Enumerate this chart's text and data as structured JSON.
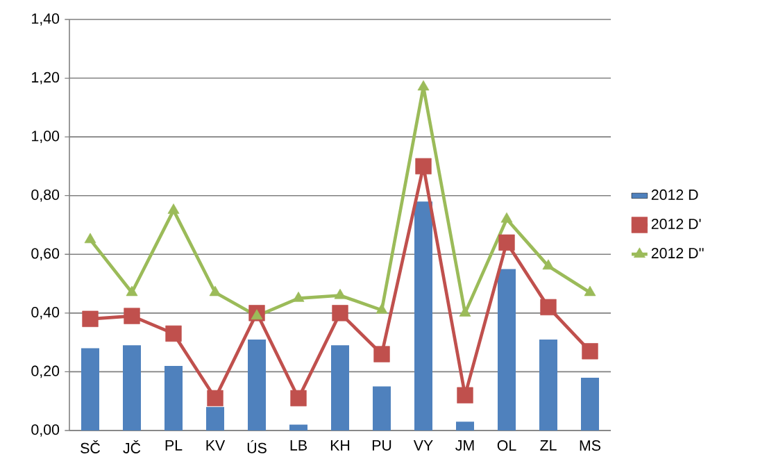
{
  "chart_data": {
    "type": "bar",
    "categories": [
      "SČ",
      "JČ",
      "PL",
      "KV",
      "ÚS",
      "LB",
      "KH",
      "PU",
      "VY",
      "JM",
      "OL",
      "ZL",
      "MS"
    ],
    "series": [
      {
        "name": "2012 D",
        "color": "#4f81bd",
        "values": [
          0.28,
          0.29,
          0.22,
          0.08,
          0.31,
          0.02,
          0.29,
          0.15,
          0.78,
          0.03,
          0.55,
          0.31,
          0.18
        ]
      },
      {
        "name": "2012 D'",
        "type": "line",
        "marker": "square",
        "color": "#c0504d",
        "values": [
          0.38,
          0.39,
          0.33,
          0.11,
          0.4,
          0.11,
          0.4,
          0.26,
          0.9,
          0.12,
          0.64,
          0.42,
          0.27
        ]
      },
      {
        "name": "2012 D''",
        "type": "line",
        "marker": "triangle",
        "color": "#9bbb59",
        "values": [
          0.65,
          0.47,
          0.75,
          0.47,
          0.39,
          0.45,
          0.46,
          0.41,
          1.17,
          0.4,
          0.72,
          0.56,
          0.47
        ]
      }
    ],
    "ylim": [
      0,
      1.4
    ],
    "yticks": [
      {
        "value": 0,
        "label": "0,00"
      },
      {
        "value": 0.2,
        "label": "0,20"
      },
      {
        "value": 0.4,
        "label": "0,40"
      },
      {
        "value": 0.6,
        "label": "0,60"
      },
      {
        "value": 0.8,
        "label": "0,80"
      },
      {
        "value": 1.0,
        "label": "1,00"
      },
      {
        "value": 1.2,
        "label": "1,20"
      },
      {
        "value": 1.4,
        "label": "1,40"
      }
    ],
    "grid": "y",
    "legend": "right"
  }
}
